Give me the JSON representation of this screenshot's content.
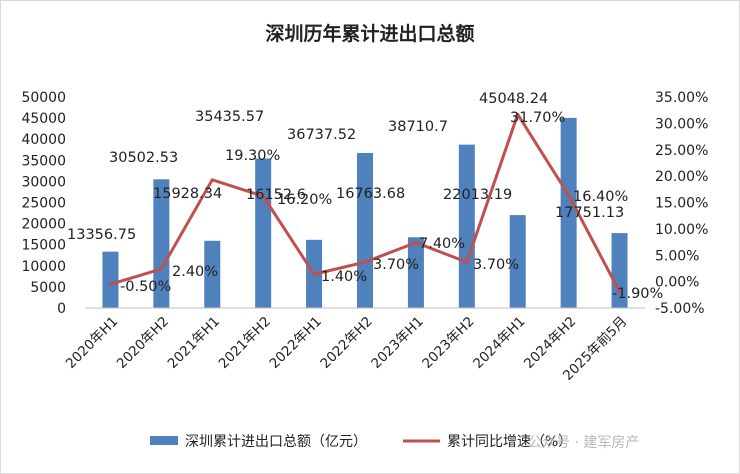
{
  "chart_data": {
    "type": "bar",
    "title": "深圳历年累计进出口总额",
    "categories": [
      "2020年H1",
      "2020年H2",
      "2021年H1",
      "2021年H2",
      "2022年H1",
      "2022年H2",
      "2023年H1",
      "2023年H2",
      "2024年H1",
      "2024年H2",
      "2025年前5月"
    ],
    "series": [
      {
        "name": "深圳累计进出口总额（亿元）",
        "type": "bar",
        "axis": "left",
        "color": "#4f81bd",
        "values": [
          13356.75,
          30502.53,
          15928.34,
          35435.57,
          16152.6,
          36737.52,
          16763.68,
          38710.7,
          22013.19,
          45048.24,
          17751.13
        ],
        "labels": [
          "13356.75",
          "30502.53",
          "15928.34",
          "35435.57",
          "16152.6",
          "36737.52",
          "16763.68",
          "38710.7",
          "22013.19",
          "45048.24",
          "17751.13"
        ]
      },
      {
        "name": "累计同比增速（%）",
        "type": "line",
        "axis": "right",
        "color": "#c0504d",
        "values": [
          -0.5,
          2.4,
          19.3,
          16.2,
          1.4,
          3.7,
          7.4,
          3.7,
          31.7,
          16.4,
          -1.9
        ],
        "labels": [
          "-0.50%",
          "2.40%",
          "19.30%",
          "16.20%",
          "1.40%",
          "3.70%",
          "7.40%",
          "3.70%",
          "31.70%",
          "16.40%",
          "-1.90%"
        ]
      }
    ],
    "y_left": {
      "min": 0,
      "max": 50000,
      "ticks": [
        "0",
        "5000",
        "10000",
        "15000",
        "20000",
        "25000",
        "30000",
        "35000",
        "40000",
        "45000",
        "50000"
      ]
    },
    "y_right": {
      "min": -5,
      "max": 35,
      "ticks": [
        "-5.00%",
        "0.00%",
        "5.00%",
        "10.00%",
        "15.00%",
        "20.00%",
        "25.00%",
        "30.00%",
        "35.00%"
      ]
    },
    "grid": false,
    "legend": "bottom"
  },
  "watermark": "公众号 · 建军房产"
}
